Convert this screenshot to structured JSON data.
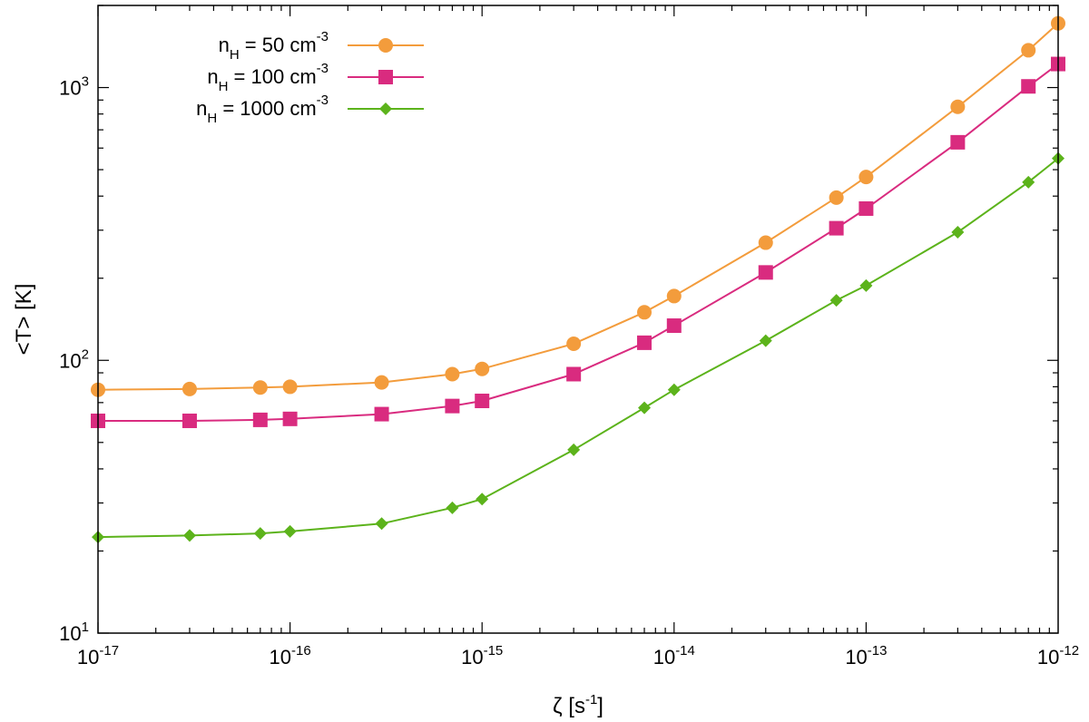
{
  "chart_data": {
    "type": "line",
    "title": "",
    "xscale": "log",
    "yscale": "log",
    "xlim": [
      1e-17,
      1e-12
    ],
    "ylim": [
      10,
      2000
    ],
    "xlabel": {
      "main": "ζ",
      "unit_open": "[s",
      "unit_exp": "-1",
      "unit_close": "]"
    },
    "ylabel": "<T>  [K]",
    "x_ticks": [
      {
        "value": 1e-17,
        "base": "10",
        "exp": "-17"
      },
      {
        "value": 1e-16,
        "base": "10",
        "exp": "-16"
      },
      {
        "value": 1e-15,
        "base": "10",
        "exp": "-15"
      },
      {
        "value": 1e-14,
        "base": "10",
        "exp": "-14"
      },
      {
        "value": 1e-13,
        "base": "10",
        "exp": "-13"
      },
      {
        "value": 1e-12,
        "base": "10",
        "exp": "-12"
      }
    ],
    "y_ticks": [
      {
        "value": 10,
        "base": "10",
        "exp": "1"
      },
      {
        "value": 100,
        "base": "10",
        "exp": "2"
      },
      {
        "value": 1000,
        "base": "10",
        "exp": "3"
      }
    ],
    "x": [
      1e-17,
      3e-17,
      7e-17,
      1e-16,
      3e-16,
      7e-16,
      1e-15,
      3e-15,
      7e-15,
      1e-14,
      3e-14,
      7e-14,
      1e-13,
      3e-13,
      7e-13,
      1e-12
    ],
    "series": [
      {
        "name": "nH = 50 cm-3",
        "legend": {
          "pre": "n",
          "sub": "H",
          "mid": " =   50 cm",
          "sup": "-3"
        },
        "color": "#f39c3c",
        "marker": "circle",
        "values": [
          78,
          78.5,
          79.5,
          80,
          83,
          89,
          93,
          115,
          150,
          172,
          270,
          395,
          470,
          850,
          1370,
          1720
        ]
      },
      {
        "name": "nH = 100 cm-3",
        "legend": {
          "pre": "n",
          "sub": "H",
          "mid": " =  100 cm",
          "sup": "-3"
        },
        "color": "#d92b7f",
        "marker": "square",
        "values": [
          60,
          60,
          60.5,
          61,
          63.5,
          68,
          71,
          89,
          116,
          134,
          210,
          305,
          360,
          630,
          1010,
          1220
        ]
      },
      {
        "name": "nH = 1000 cm-3",
        "legend": {
          "pre": "n",
          "sub": "H",
          "mid": " = 1000 cm",
          "sup": "-3"
        },
        "color": "#5cb31b",
        "marker": "diamond",
        "values": [
          22.5,
          22.8,
          23.2,
          23.6,
          25.2,
          28.8,
          31,
          47,
          67,
          78,
          118,
          166,
          188,
          295,
          450,
          550
        ]
      }
    ],
    "legend_position": "top-left"
  }
}
